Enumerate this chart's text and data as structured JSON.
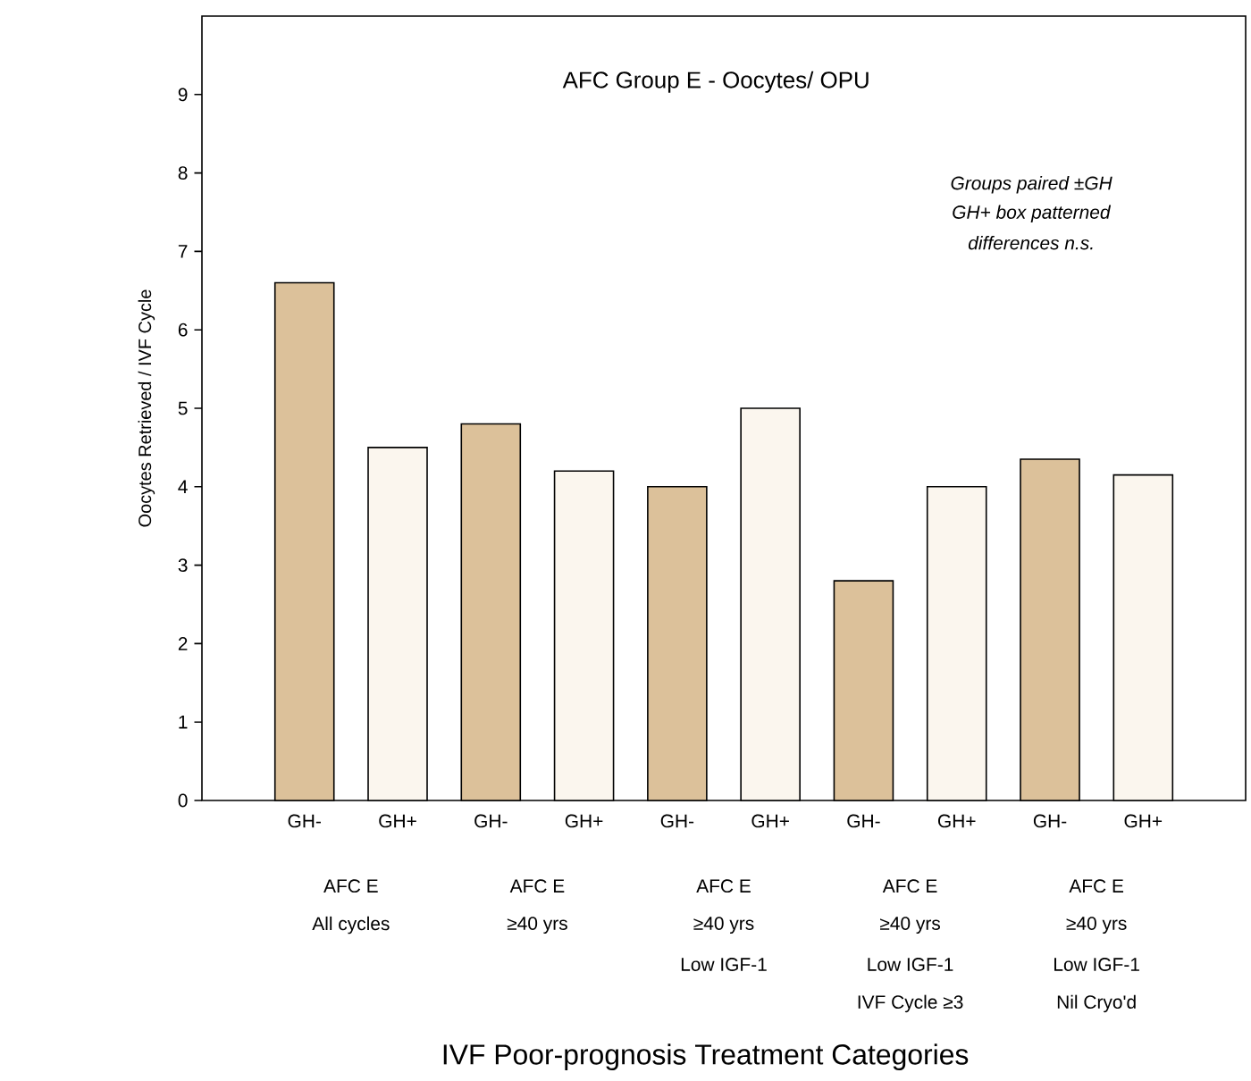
{
  "chart_data": {
    "type": "bar",
    "title": "AFC Group E - Oocytes/ OPU",
    "ylabel": "Oocytes  Retrieved / IVF Cycle",
    "categories": [
      "GH-",
      "GH+",
      "GH-",
      "GH+",
      "GH-",
      "GH+",
      "GH-",
      "GH+",
      "GH-",
      "GH+"
    ],
    "values": [
      6.6,
      4.5,
      4.8,
      4.2,
      4.0,
      5.0,
      2.8,
      4.0,
      4.35,
      4.15
    ],
    "colors": [
      "#dcc19a",
      "#fbf6ee",
      "#dcc19a",
      "#fbf6ee",
      "#dcc19a",
      "#fbf6ee",
      "#dcc19a",
      "#fbf6ee",
      "#dcc19a",
      "#fbf6ee"
    ],
    "ylim": [
      0,
      10
    ],
    "yticks": [
      0,
      1,
      2,
      3,
      4,
      5,
      6,
      7,
      8,
      9
    ],
    "annotations": [
      "*Groups paired ±GH*",
      "*GH+ box patterned*",
      "*differences n.s.*",
      "AFC E",
      "All cycles",
      "AFC E",
      "≥40 yrs",
      "AFC E",
      "≥40 yrs",
      "Low IGF-1",
      "AFC E",
      "≥40 yrs",
      "Low IGF-1",
      "IVF Cycle ≥3",
      "AFC E",
      "≥40 yrs",
      "Low IGF-1",
      "Nil Cryo'd",
      "IVF Poor-prognosis Treatment Categories"
    ]
  }
}
